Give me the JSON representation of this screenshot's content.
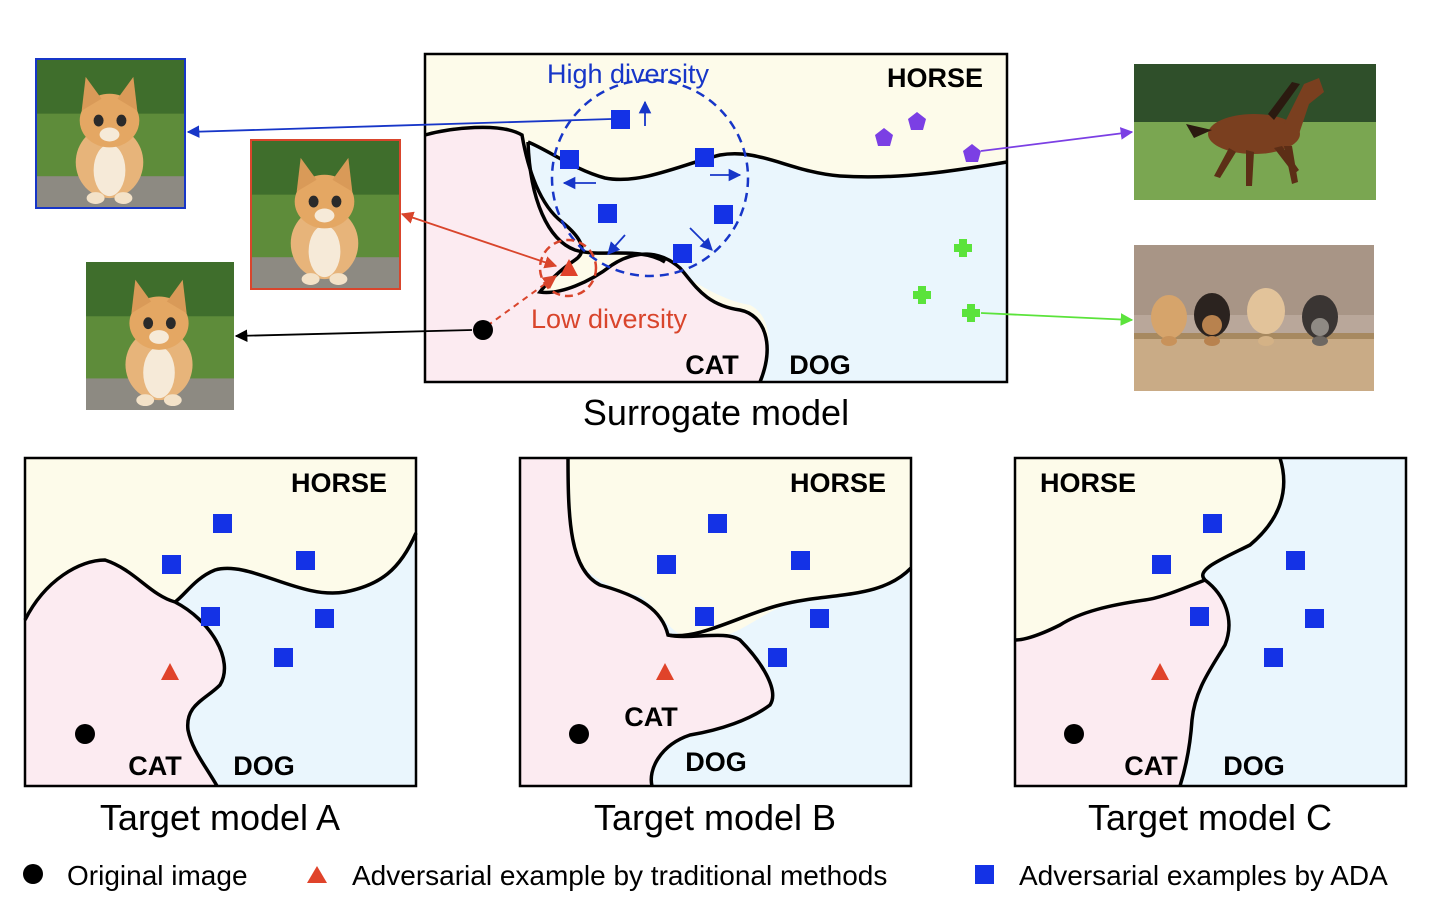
{
  "colors": {
    "horse_region": "#fdfbea",
    "cat_region": "#fcebf1",
    "dog_region": "#eaf6fd",
    "ada_marker": "#1432e6",
    "traditional_marker": "#e0432a",
    "original_marker": "#000000",
    "horse_marker": "#7b3fe4",
    "dog_marker": "#5be33b",
    "high_diversity": "#1736c8",
    "low_diversity": "#d9452c"
  },
  "surrogate": {
    "caption": "Surrogate model",
    "labels": {
      "horse": "HORSE",
      "cat": "CAT",
      "dog": "DOG"
    },
    "high_diversity_label": "High diversity",
    "low_diversity_label": "Low diversity"
  },
  "targets": [
    {
      "caption": "Target model A",
      "labels": {
        "horse": "HORSE",
        "cat": "CAT",
        "dog": "DOG"
      }
    },
    {
      "caption": "Target model B",
      "labels": {
        "horse": "HORSE",
        "cat": "CAT",
        "dog": "DOG"
      }
    },
    {
      "caption": "Target model C",
      "labels": {
        "horse": "HORSE",
        "cat": "CAT",
        "dog": "DOG"
      }
    }
  ],
  "thumbnails": {
    "cat_blue": "cat-photo",
    "cat_red": "cat-photo",
    "cat_black": "cat-photo",
    "horse": "horse-photo",
    "dogs": "puppies-photo"
  },
  "legend": {
    "original": "Original image",
    "traditional": "Adversarial example by traditional methods",
    "ada": "Adversarial examples by ADA"
  }
}
